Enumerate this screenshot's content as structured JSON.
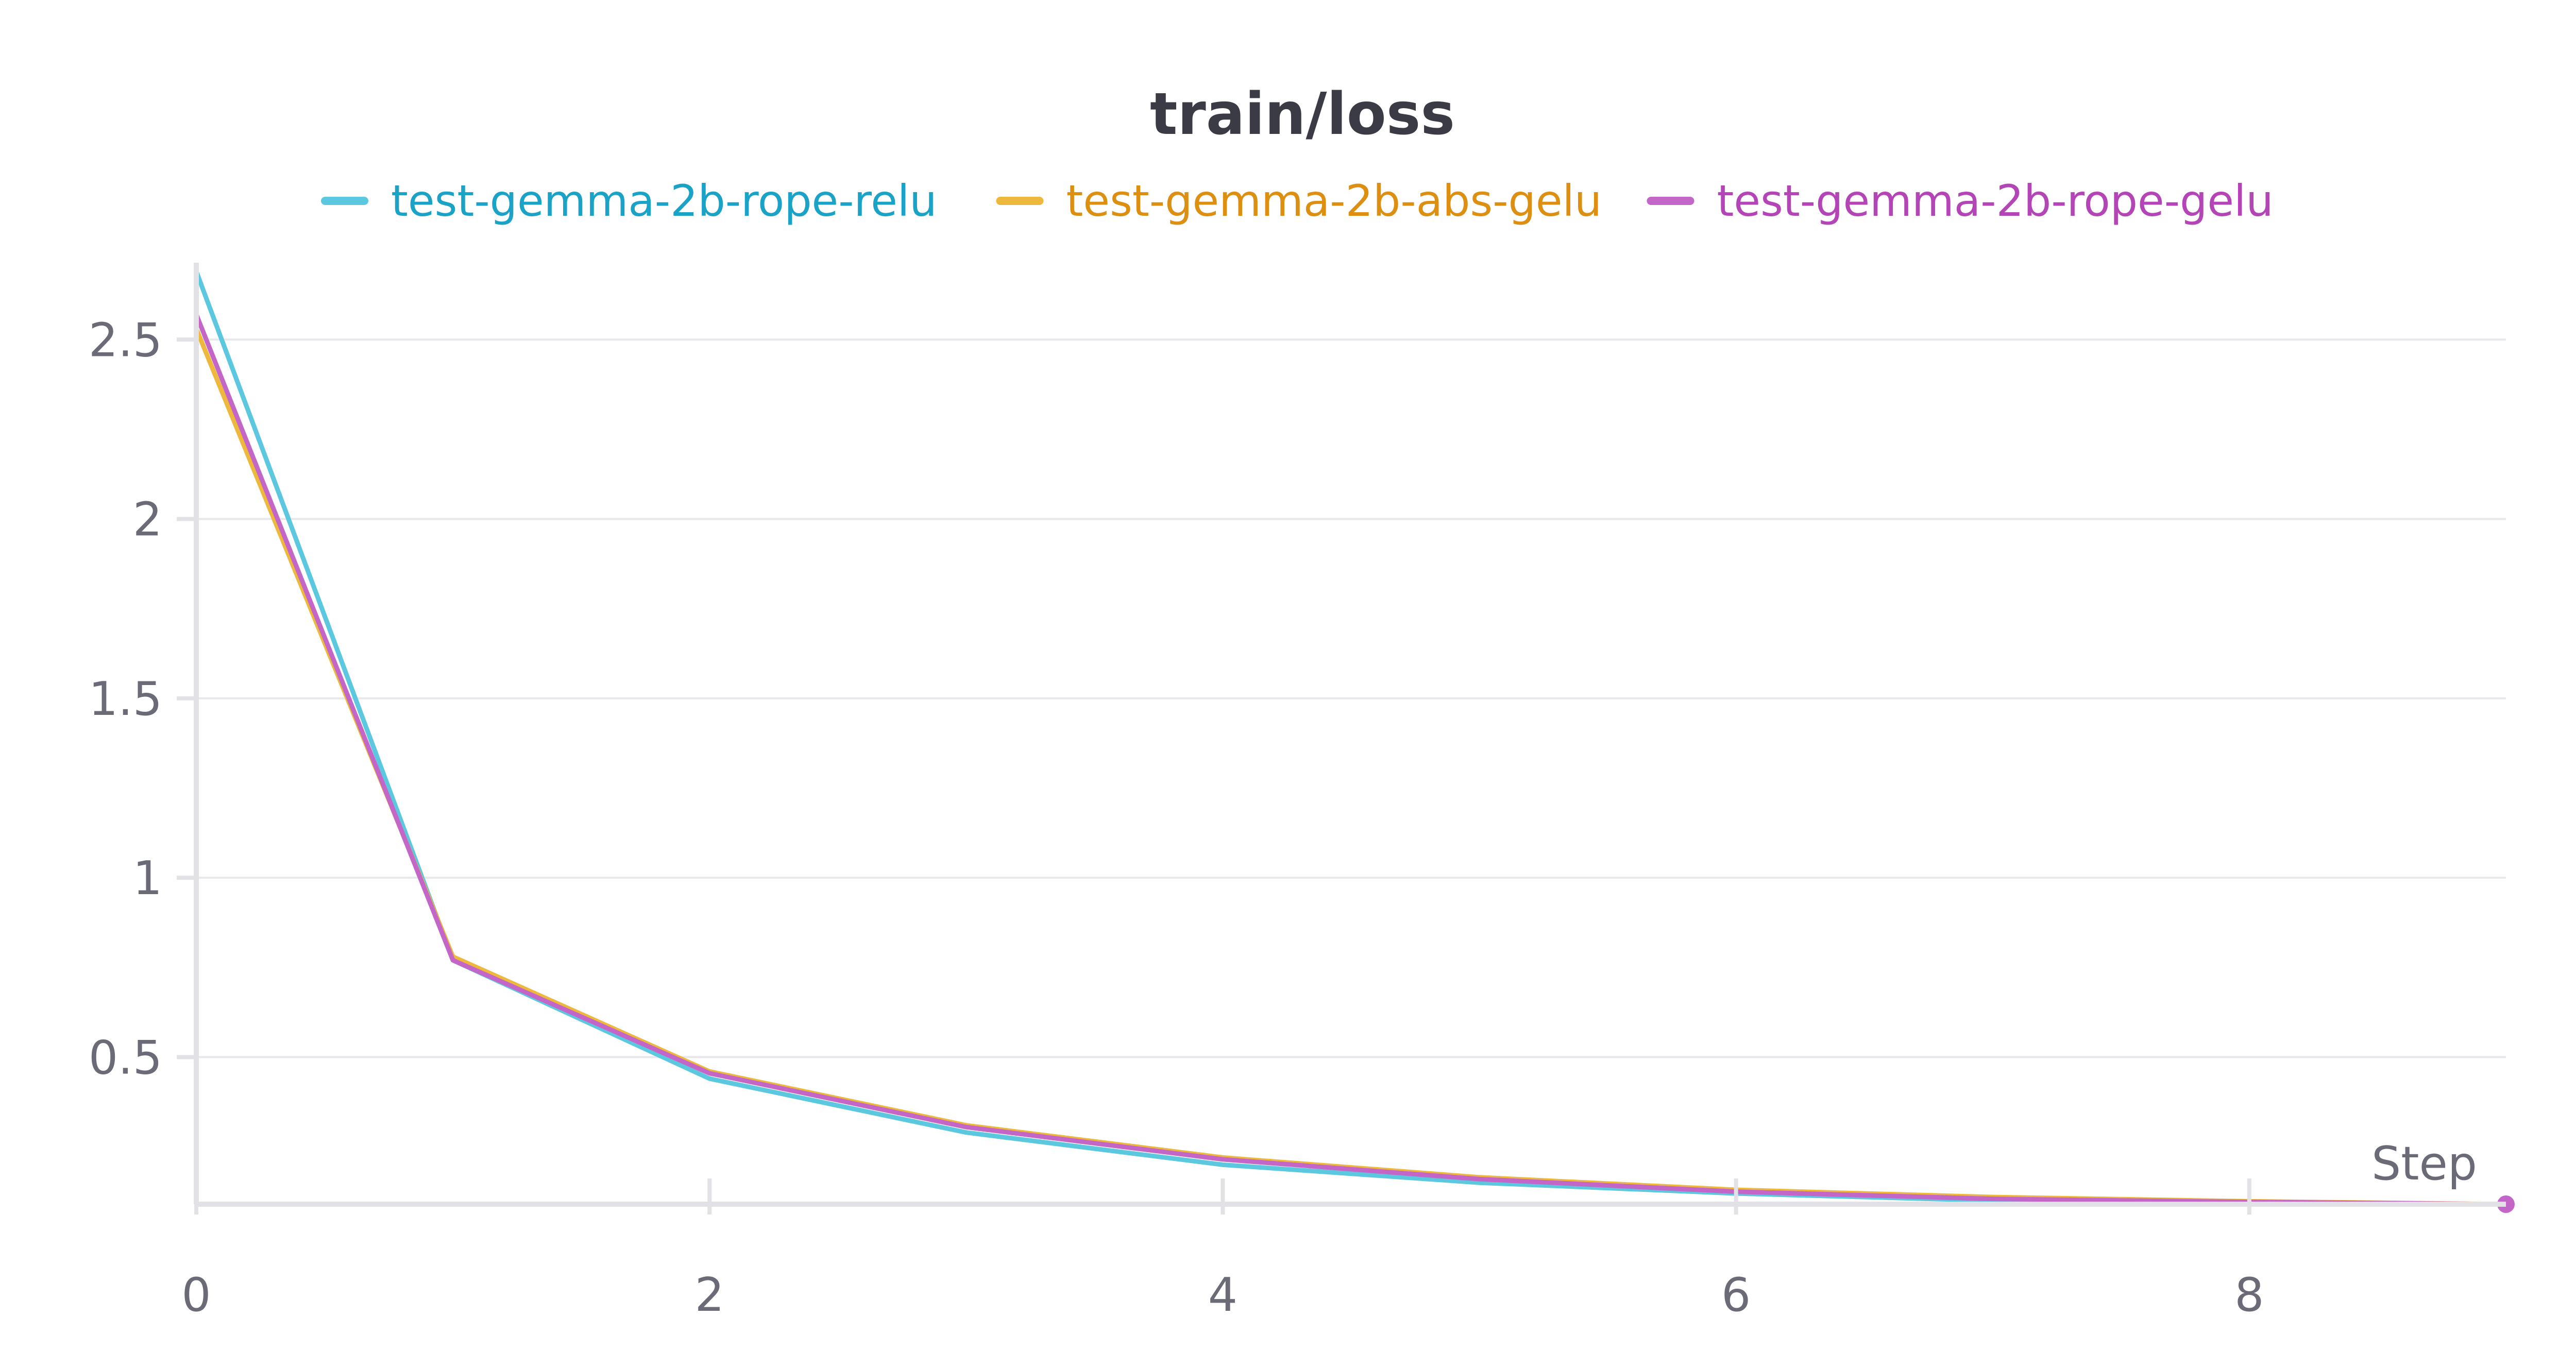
{
  "chart_data": {
    "type": "line",
    "title": "train/loss",
    "xlabel": "Step",
    "ylabel": "",
    "x": [
      0,
      1,
      2,
      3,
      4,
      5,
      6,
      7,
      8,
      9
    ],
    "xlim": [
      0,
      9
    ],
    "ylim": [
      0.09,
      2.7
    ],
    "xticks": [
      0,
      2,
      4,
      6,
      8
    ],
    "xtick_labels": [
      "0",
      "2",
      "4",
      "6",
      "8"
    ],
    "yticks": [
      0.5,
      1,
      1.5,
      2,
      2.5
    ],
    "ytick_labels": [
      "0.5",
      "1",
      "1.5",
      "2",
      "2.5"
    ],
    "grid": true,
    "legend_position": "top-center",
    "series": [
      {
        "name": "test-gemma-2b-rope-relu",
        "color": "#5bc8df",
        "text_color": "#1aa3c7",
        "values": [
          2.69,
          0.77,
          0.44,
          0.29,
          0.2,
          0.15,
          0.12,
          0.1,
          0.095,
          0.09
        ]
      },
      {
        "name": "test-gemma-2b-abs-gelu",
        "color": "#edb83c",
        "text_color": "#dd8f12",
        "values": [
          2.53,
          0.78,
          0.46,
          0.31,
          0.22,
          0.165,
          0.13,
          0.11,
          0.098,
          0.09
        ]
      },
      {
        "name": "test-gemma-2b-rope-gelu",
        "color": "#c366c8",
        "text_color": "#b445b7",
        "values": [
          2.57,
          0.77,
          0.455,
          0.305,
          0.215,
          0.16,
          0.125,
          0.105,
          0.096,
          0.09
        ]
      }
    ]
  }
}
